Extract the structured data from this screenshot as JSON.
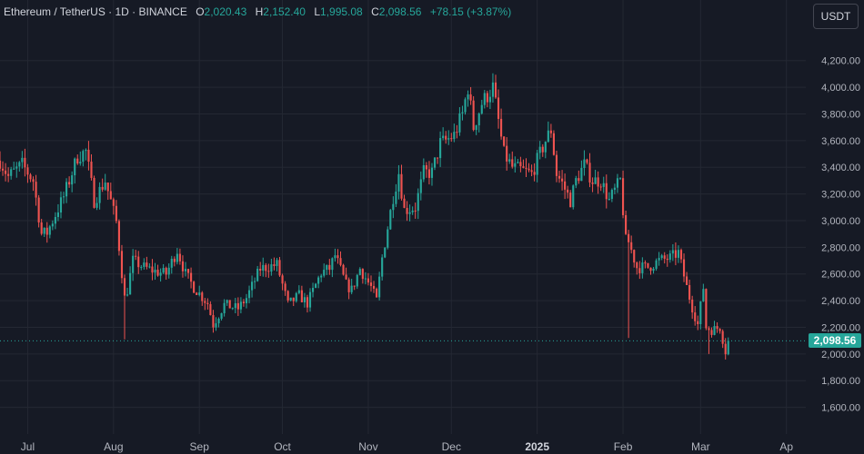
{
  "legend": {
    "symbol": "Ethereum / TetherUS · 1D · BINANCE",
    "o_label": "O",
    "o_value": "2,020.43",
    "h_label": "H",
    "h_value": "2,152.40",
    "l_label": "L",
    "l_value": "1,995.08",
    "c_label": "C",
    "c_value": "2,098.56",
    "change": "+78.15 (+3.87%)"
  },
  "currency_button": "USDT",
  "last_price_label": "2,098.56",
  "colors": {
    "up": "#26a69a",
    "down": "#ef5350",
    "background": "#161a25",
    "grid": "#242833"
  },
  "chart_data": {
    "type": "candlestick",
    "title": "",
    "xlabel": "",
    "ylabel": "",
    "ylim": [
      1400,
      4450
    ],
    "y_ticks": [
      1600,
      1800,
      2000,
      2200,
      2400,
      2600,
      2800,
      3000,
      3200,
      3400,
      3600,
      3800,
      4000,
      4200
    ],
    "y_tick_labels": [
      "1,600.00",
      "1,800.00",
      "2,000.00",
      "2,200.00",
      "2,400.00",
      "2,600.00",
      "2,800.00",
      "3,000.00",
      "3,200.00",
      "3,400.00",
      "3,600.00",
      "3,800.00",
      "4,000.00",
      "4,200.00"
    ],
    "x_range": [
      "2024-06-21",
      "2025-04-08"
    ],
    "x_ticks": [
      {
        "date": "2024-07-01",
        "label": "Jul"
      },
      {
        "date": "2024-08-01",
        "label": "Aug"
      },
      {
        "date": "2024-09-01",
        "label": "Sep"
      },
      {
        "date": "2024-10-01",
        "label": "Oct"
      },
      {
        "date": "2024-11-01",
        "label": "Nov"
      },
      {
        "date": "2024-12-01",
        "label": "Dec"
      },
      {
        "date": "2025-01-01",
        "label": "2025",
        "bold": true
      },
      {
        "date": "2025-02-01",
        "label": "Feb"
      },
      {
        "date": "2025-03-01",
        "label": "Mar"
      },
      {
        "date": "2025-04-01",
        "label": "Ap"
      }
    ],
    "last_price": 2098.56,
    "start_date": "2024-06-21",
    "anchors": [
      [
        "2024-06-21",
        3450
      ],
      [
        "2024-06-24",
        3330
      ],
      [
        "2024-06-29",
        3420
      ],
      [
        "2024-07-03",
        3300
      ],
      [
        "2024-07-06",
        2900
      ],
      [
        "2024-07-08",
        2910
      ],
      [
        "2024-07-14",
        3180
      ],
      [
        "2024-07-19",
        3480
      ],
      [
        "2024-07-22",
        3520
      ],
      [
        "2024-07-25",
        3150
      ],
      [
        "2024-07-29",
        3300
      ],
      [
        "2024-08-02",
        2990
      ],
      [
        "2024-08-05",
        2420
      ],
      [
        "2024-08-06",
        2480
      ],
      [
        "2024-08-08",
        2700
      ],
      [
        "2024-08-12",
        2650
      ],
      [
        "2024-08-16",
        2620
      ],
      [
        "2024-08-20",
        2600
      ],
      [
        "2024-08-24",
        2780
      ],
      [
        "2024-08-27",
        2600
      ],
      [
        "2024-08-30",
        2500
      ],
      [
        "2024-09-04",
        2380
      ],
      [
        "2024-09-06",
        2220
      ],
      [
        "2024-09-10",
        2370
      ],
      [
        "2024-09-15",
        2340
      ],
      [
        "2024-09-18",
        2420
      ],
      [
        "2024-09-23",
        2640
      ],
      [
        "2024-09-29",
        2670
      ],
      [
        "2024-10-03",
        2370
      ],
      [
        "2024-10-07",
        2440
      ],
      [
        "2024-10-10",
        2380
      ],
      [
        "2024-10-15",
        2610
      ],
      [
        "2024-10-18",
        2640
      ],
      [
        "2024-10-20",
        2740
      ],
      [
        "2024-10-24",
        2520
      ],
      [
        "2024-10-26",
        2480
      ],
      [
        "2024-10-29",
        2640
      ],
      [
        "2024-11-02",
        2500
      ],
      [
        "2024-11-04",
        2400
      ],
      [
        "2024-11-06",
        2720
      ],
      [
        "2024-11-10",
        3180
      ],
      [
        "2024-11-12",
        3360
      ],
      [
        "2024-11-14",
        3080
      ],
      [
        "2024-11-18",
        3100
      ],
      [
        "2024-11-21",
        3360
      ],
      [
        "2024-11-24",
        3360
      ],
      [
        "2024-11-27",
        3580
      ],
      [
        "2024-11-29",
        3600
      ],
      [
        "2024-12-02",
        3640
      ],
      [
        "2024-12-05",
        3800
      ],
      [
        "2024-12-07",
        4000
      ],
      [
        "2024-12-09",
        3700
      ],
      [
        "2024-12-12",
        3880
      ],
      [
        "2024-12-16",
        4000
      ],
      [
        "2024-12-19",
        3620
      ],
      [
        "2024-12-20",
        3500
      ],
      [
        "2024-12-23",
        3400
      ],
      [
        "2024-12-26",
        3380
      ],
      [
        "2024-12-30",
        3350
      ],
      [
        "2025-01-04",
        3600
      ],
      [
        "2025-01-06",
        3680
      ],
      [
        "2025-01-08",
        3350
      ],
      [
        "2025-01-10",
        3280
      ],
      [
        "2025-01-13",
        3150
      ],
      [
        "2025-01-15",
        3300
      ],
      [
        "2025-01-18",
        3420
      ],
      [
        "2025-01-21",
        3300
      ],
      [
        "2025-01-24",
        3300
      ],
      [
        "2025-01-27",
        3150
      ],
      [
        "2025-01-31",
        3300
      ],
      [
        "2025-02-02",
        2850
      ],
      [
        "2025-02-03",
        2840
      ],
      [
        "2025-02-06",
        2650
      ],
      [
        "2025-02-10",
        2650
      ],
      [
        "2025-02-14",
        2700
      ],
      [
        "2025-02-18",
        2720
      ],
      [
        "2025-02-21",
        2760
      ],
      [
        "2025-02-24",
        2500
      ],
      [
        "2025-02-26",
        2350
      ],
      [
        "2025-02-28",
        2220
      ],
      [
        "2025-03-02",
        2500
      ],
      [
        "2025-03-03",
        2200
      ],
      [
        "2025-03-05",
        2180
      ],
      [
        "2025-03-08",
        2200
      ],
      [
        "2025-03-10",
        2020
      ],
      [
        "2025-03-11",
        2098.56
      ]
    ]
  }
}
